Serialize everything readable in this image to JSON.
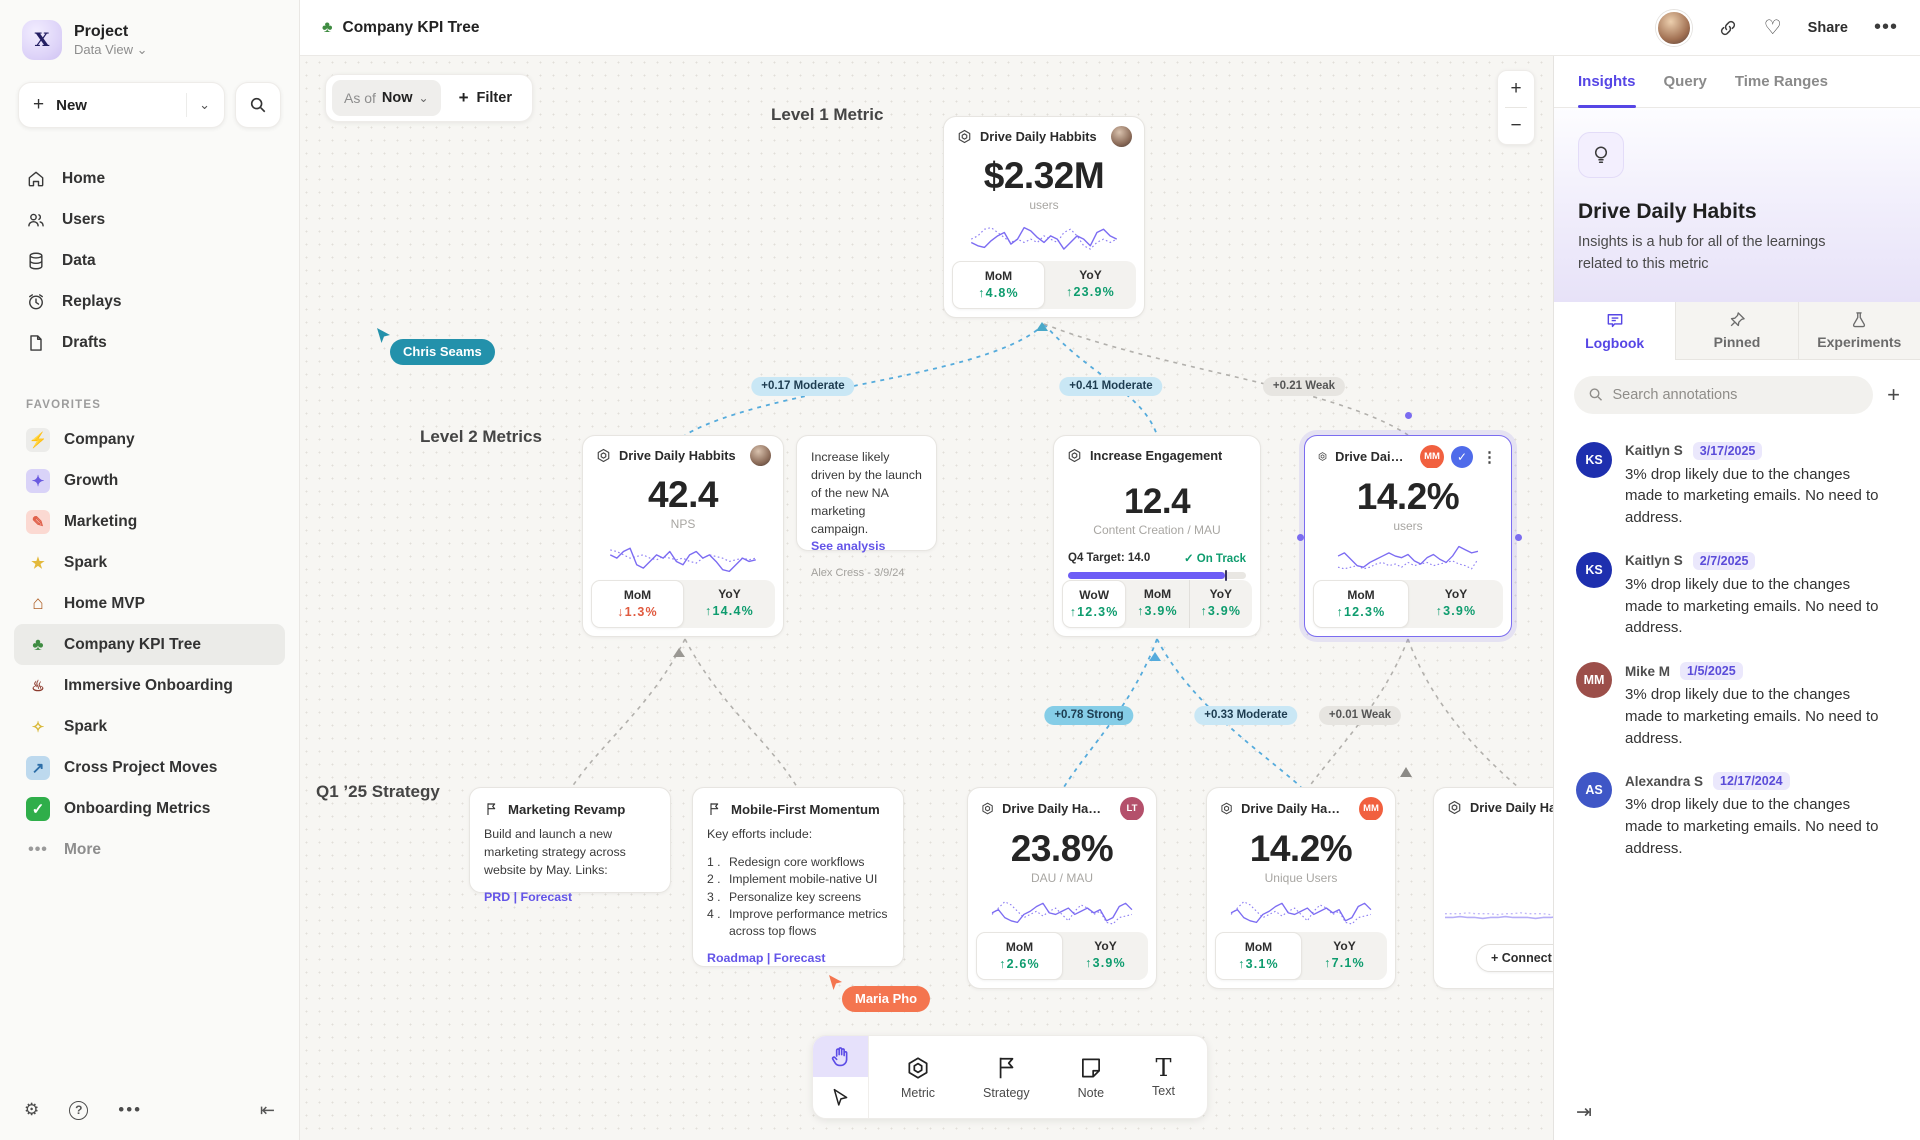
{
  "sidebar": {
    "project_name": "Project",
    "project_view": "Data View",
    "new_label": "New",
    "nav": [
      {
        "icon": "home-icon",
        "label": "Home"
      },
      {
        "icon": "users-icon",
        "label": "Users"
      },
      {
        "icon": "database-icon",
        "label": "Data"
      },
      {
        "icon": "replay-icon",
        "label": "Replays"
      },
      {
        "icon": "document-icon",
        "label": "Drafts"
      }
    ],
    "favorites_label": "FAVORITES",
    "favorites": [
      {
        "glyph": "⚡",
        "label": "Company",
        "tile": "#ececea",
        "fg": "#555555"
      },
      {
        "glyph": "✦",
        "label": "Growth",
        "tile": "#d9d3f8",
        "fg": "#6a5ae0"
      },
      {
        "glyph": "✎",
        "label": "Marketing",
        "tile": "#fbd9d2",
        "fg": "#e0604a"
      },
      {
        "glyph": "★",
        "label": "Spark",
        "tile": "",
        "fg": "#e3b93c"
      },
      {
        "glyph": "⌂",
        "label": "Home MVP",
        "tile": "",
        "fg": "#b0622a"
      },
      {
        "glyph": "♣",
        "label": "Company KPI Tree",
        "tile": "",
        "fg": "#3f8c42"
      },
      {
        "glyph": "♨",
        "label": "Immersive Onboarding",
        "tile": "",
        "fg": "#8c3b2e"
      },
      {
        "glyph": "✧",
        "label": "Spark",
        "tile": "",
        "fg": "#d9b93a"
      },
      {
        "glyph": "↗",
        "label": "Cross Project Moves",
        "tile": "#bdd9ee",
        "fg": "#2d6ea8"
      },
      {
        "glyph": "✓",
        "label": "Onboarding Metrics",
        "tile": "#2fae4a",
        "fg": "#ffffff"
      }
    ],
    "more_label": "More"
  },
  "header": {
    "doc_icon": "♣",
    "title": "Company KPI Tree",
    "share_label": "Share"
  },
  "toolbar": {
    "asof_label": "As of",
    "asof_value": "Now",
    "filter_label": "Filter",
    "zoom_in": "+",
    "zoom_out": "−"
  },
  "canvas": {
    "level1_label": "Level 1 Metric",
    "level2_label": "Level 2 Metrics",
    "strategy_label": "Q1 ’25 Strategy",
    "edge_labels": [
      {
        "text": "+0.17 Moderate",
        "strength": "moderate"
      },
      {
        "text": "+0.41 Moderate",
        "strength": "moderate"
      },
      {
        "text": "+0.21 Weak",
        "strength": "weak"
      },
      {
        "text": "+0.78 Strong",
        "strength": "strong"
      },
      {
        "text": "+0.33 Moderate",
        "strength": "moderate"
      },
      {
        "text": "+0.01 Weak",
        "strength": "weak"
      }
    ],
    "cursors": [
      {
        "name": "Chris Seams",
        "color": "#2391ab"
      },
      {
        "name": "Maria Pho",
        "color": "#f4754f"
      }
    ]
  },
  "cards": {
    "l1": {
      "title": "Drive Daily Habbits",
      "value": "$2.32M",
      "unit": "users",
      "footer": [
        {
          "label": "MoM",
          "value": "↑4.8%",
          "dir": "up"
        },
        {
          "label": "YoY",
          "value": "↑23.9%",
          "dir": "up"
        }
      ]
    },
    "l2a": {
      "title": "Drive Daily Habbits",
      "value": "42.4",
      "unit": "NPS",
      "footer": [
        {
          "label": "MoM",
          "value": "↓1.3%",
          "dir": "down"
        },
        {
          "label": "YoY",
          "value": "↑14.4%",
          "dir": "up"
        }
      ]
    },
    "l2b": {
      "title": "Increase Engagement",
      "value": "12.4",
      "unit": "Content Creation / MAU",
      "target_label": "Q4 Target: 14.0",
      "status": "✓ On Track",
      "progress_pct": 88,
      "footer": [
        {
          "label": "WoW",
          "value": "↑12.3%",
          "dir": "up"
        },
        {
          "label": "MoM",
          "value": "↑3.9%",
          "dir": "up"
        },
        {
          "label": "YoY",
          "value": "↑3.9%",
          "dir": "up"
        }
      ]
    },
    "l2c": {
      "title": "Drive Daily Habb..",
      "badge": "MM",
      "badge_color": "#f1603f",
      "value": "14.2%",
      "unit": "users",
      "footer": [
        {
          "label": "MoM",
          "value": "↑12.3%",
          "dir": "up"
        },
        {
          "label": "YoY",
          "value": "↑3.9%",
          "dir": "up"
        }
      ]
    },
    "m1": {
      "title": "Drive Daily Habbits",
      "badge": "LT",
      "badge_color": "#b4506b",
      "value": "23.8%",
      "unit": "DAU / MAU",
      "footer": [
        {
          "label": "MoM",
          "value": "↑2.6%",
          "dir": "up"
        },
        {
          "label": "YoY",
          "value": "↑3.9%",
          "dir": "up"
        }
      ]
    },
    "m2": {
      "title": "Drive Daily Habbits",
      "badge": "MM",
      "badge_color": "#f1603f",
      "value": "14.2%",
      "unit": "Unique Users",
      "footer": [
        {
          "label": "MoM",
          "value": "↑3.1%",
          "dir": "up"
        },
        {
          "label": "YoY",
          "value": "↑7.1%",
          "dir": "up"
        }
      ]
    },
    "m3": {
      "title": "Drive Daily Hab",
      "connect_label": "+ Connect"
    }
  },
  "notes": {
    "n1": {
      "body": "Increase likely driven by the launch of the new NA marketing campaign.",
      "link": "See analysis",
      "author": "Alex Cress - 3/9/24"
    }
  },
  "strategies": {
    "s1": {
      "title": "Marketing Revamp",
      "body": "Build and launch a new marketing strategy across website by May. Links:",
      "links": "PRD | Forecast"
    },
    "s2": {
      "title": "Mobile-First Momentum",
      "intro": "Key efforts include:",
      "items": [
        "Redesign core workflows",
        "Implement mobile-native UI",
        "Personalize key screens",
        "Improve performance metrics across top flows"
      ],
      "links": "Roadmap | Forecast"
    }
  },
  "tools": {
    "items": [
      {
        "label": "Metric"
      },
      {
        "label": "Strategy"
      },
      {
        "label": "Note"
      },
      {
        "label": "Text"
      }
    ]
  },
  "panel": {
    "tabs": [
      "Insights",
      "Query",
      "Time Ranges"
    ],
    "hero_title": "Drive Daily Habits",
    "hero_sub": "Insights is a hub for all of the learnings related to this metric",
    "subtabs": [
      {
        "label": "Logbook"
      },
      {
        "label": "Pinned"
      },
      {
        "label": "Experiments"
      }
    ],
    "search_placeholder": "Search annotations",
    "annotations": [
      {
        "initials": "KS",
        "avatar_color": "#1e2fae",
        "name": "Kaitlyn S",
        "date": "3/17/2025",
        "body": "3% drop likely due to the changes made to marketing emails. No need to address."
      },
      {
        "initials": "KS",
        "avatar_color": "#1e2fae",
        "name": "Kaitlyn S",
        "date": "2/7/2025",
        "body": "3% drop likely due to the changes made to marketing emails. No need to address."
      },
      {
        "initials": "MM",
        "avatar_color": "#9c4f4a",
        "name": "Mike M",
        "date": "1/5/2025",
        "body": "3% drop likely due to the changes made to marketing emails. No need to address."
      },
      {
        "initials": "AS",
        "avatar_color": "#3f56c6",
        "name": "Alexandra S",
        "date": "12/17/2024",
        "body": "3% drop likely due to the changes made to marketing emails. No need to address."
      }
    ]
  },
  "sparklines": {
    "a": {
      "solid": [
        22,
        18,
        16,
        24,
        30,
        34,
        20,
        26,
        40,
        36,
        28,
        22,
        30,
        26,
        14,
        22,
        30,
        26,
        18,
        34,
        38,
        30,
        26
      ],
      "dotted": [
        26,
        30,
        38,
        40,
        34,
        28,
        22,
        26,
        22,
        26,
        22,
        30,
        26,
        22,
        34,
        38,
        30,
        18,
        14,
        22,
        26,
        22,
        26
      ]
    },
    "b": {
      "solid": [
        30,
        26,
        34,
        38,
        18,
        14,
        22,
        30,
        26,
        34,
        22,
        18,
        30,
        34,
        26,
        30,
        22,
        12,
        10,
        18,
        26,
        22,
        24
      ],
      "dotted": [
        36,
        34,
        30,
        26,
        28,
        30,
        26,
        24,
        28,
        26,
        24,
        26,
        22,
        20,
        26,
        30,
        28,
        26,
        22,
        24,
        26,
        24,
        26
      ]
    },
    "c": {
      "solid": [
        30,
        34,
        26,
        18,
        16,
        22,
        26,
        30,
        34,
        30,
        28,
        32,
        24,
        20,
        28,
        32,
        26,
        22,
        30,
        42,
        38,
        34,
        36
      ],
      "dotted": [
        16,
        14,
        16,
        18,
        14,
        16,
        20,
        22,
        18,
        20,
        16,
        22,
        18,
        20,
        22,
        18,
        20,
        22,
        24,
        20,
        18,
        14,
        26
      ]
    },
    "d": {
      "solid": [
        24,
        28,
        18,
        14,
        12,
        22,
        26,
        32,
        36,
        24,
        22,
        26,
        30,
        22,
        26,
        30,
        24,
        28,
        14,
        18,
        32,
        36,
        28
      ],
      "dotted": [
        22,
        30,
        38,
        34,
        26,
        18,
        22,
        26,
        20,
        26,
        30,
        22,
        14,
        26,
        34,
        30,
        22,
        26,
        12,
        10,
        18,
        20,
        22
      ]
    },
    "flat": {
      "solid": [
        18,
        18,
        19,
        18,
        18,
        17,
        18,
        18,
        19,
        18,
        18,
        18,
        17,
        18,
        18,
        19,
        18,
        18,
        18,
        17,
        18,
        18,
        18
      ],
      "dotted": [
        22,
        22,
        22,
        23,
        22,
        22,
        22,
        21,
        22,
        22,
        23,
        22,
        22,
        22,
        21,
        22,
        22,
        22,
        23,
        22,
        22,
        22,
        22
      ]
    }
  }
}
